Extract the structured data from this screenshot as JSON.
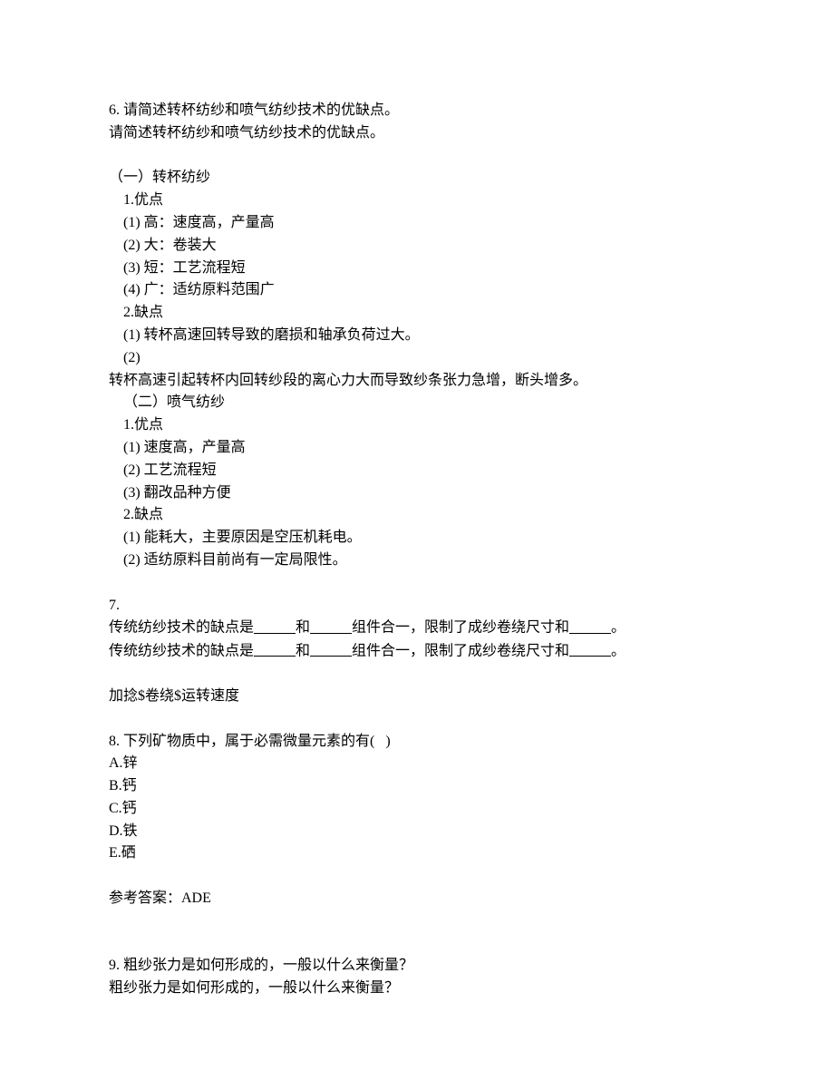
{
  "q6": {
    "title": "6. 请简述转杯纺纱和喷气纺纱技术的优缺点。",
    "repeat": "请简述转杯纺纱和喷气纺纱技术的优缺点。",
    "section1_heading": "（一）转杯纺纱",
    "adv_heading1": "1.优点",
    "adv1_1": "(1) 高：速度高，产量高",
    "adv1_2": "(2) 大：卷装大",
    "adv1_3": "(3) 短：工艺流程短",
    "adv1_4": "(4) 广：适纺原料范围广",
    "dis_heading1": "2.缺点",
    "dis1_1": "(1) 转杯高速回转导致的磨损和轴承负荷过大。",
    "dis1_2": "(2)",
    "dis1_2b": "转杯高速引起转杯内回转纱段的离心力大而导致纱条张力急增，断头增多。",
    "section2_heading": "（二）喷气纺纱",
    "adv_heading2": "1.优点",
    "adv2_1": "(1) 速度高，产量高",
    "adv2_2": "(2) 工艺流程短",
    "adv2_3": "(3) 翻改品种方便",
    "dis_heading2": "2.缺点",
    "dis2_1": "(1) 能耗大，主要原因是空压机耗电。",
    "dis2_2": "(2) 适纺原料目前尚有一定局限性。"
  },
  "q7": {
    "title_prefix": "7.",
    "line1_a": "传统纺纱技术的缺点是",
    "line1_b": "和",
    "line1_c": "组件合一，限制了成纱卷绕尺寸和",
    "line1_d": "。",
    "line2_a": "传统纺纱技术的缺点是",
    "line2_b": "和",
    "line2_c": "组件合一，限制了成纱卷绕尺寸和",
    "line2_d": "。",
    "answer": "加捻$卷绕$运转速度"
  },
  "q8": {
    "title": "8. 下列矿物质中，属于必需微量元素的有(   )",
    "options": {
      "A": "A.锌",
      "B": "B.钙",
      "C": "C.钙",
      "D": "D.铁",
      "E": "E.硒"
    },
    "answer_label": "参考答案：ADE"
  },
  "q9": {
    "title": "9. 粗纱张力是如何形成的，一般以什么来衡量？",
    "repeat": "粗纱张力是如何形成的，一般以什么来衡量？"
  }
}
